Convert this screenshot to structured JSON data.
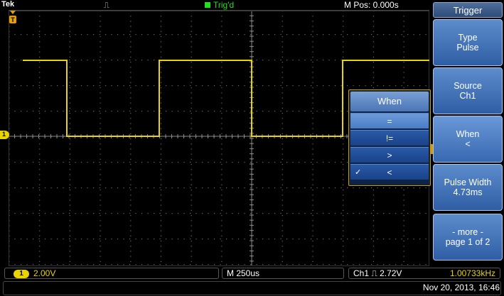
{
  "header": {
    "brand": "Tek",
    "pulse_icon": "⎍",
    "trigger_status": "Trig'd",
    "horizontal_position": "M Pos: 0.000s"
  },
  "channel_marker": "1",
  "menu": {
    "title": "Trigger",
    "buttons": [
      {
        "line1": "Type",
        "line2": "Pulse"
      },
      {
        "line1": "Source",
        "line2": "Ch1"
      },
      {
        "line1": "When",
        "line2": "<"
      },
      {
        "line1": "Pulse Width",
        "line2": "4.73ms"
      },
      {
        "line1": "- more -",
        "line2": "page 1 of 2"
      }
    ]
  },
  "popup": {
    "title": "When",
    "options": [
      "=",
      "!=",
      ">",
      "<"
    ],
    "checkmark": "✓"
  },
  "status": {
    "ch1_label": "1",
    "ch1_scale": "2.00V",
    "timebase": "M 250us",
    "trigger_readout": "Ch1 ⎍ 2.72V",
    "frequency": "1.00733kHz",
    "datetime": "Nov 20, 2013, 16:46"
  },
  "colors": {
    "trace": "#e8d400",
    "trig_status": "#1fe21f",
    "menu_button": "#3e6fb8"
  }
}
